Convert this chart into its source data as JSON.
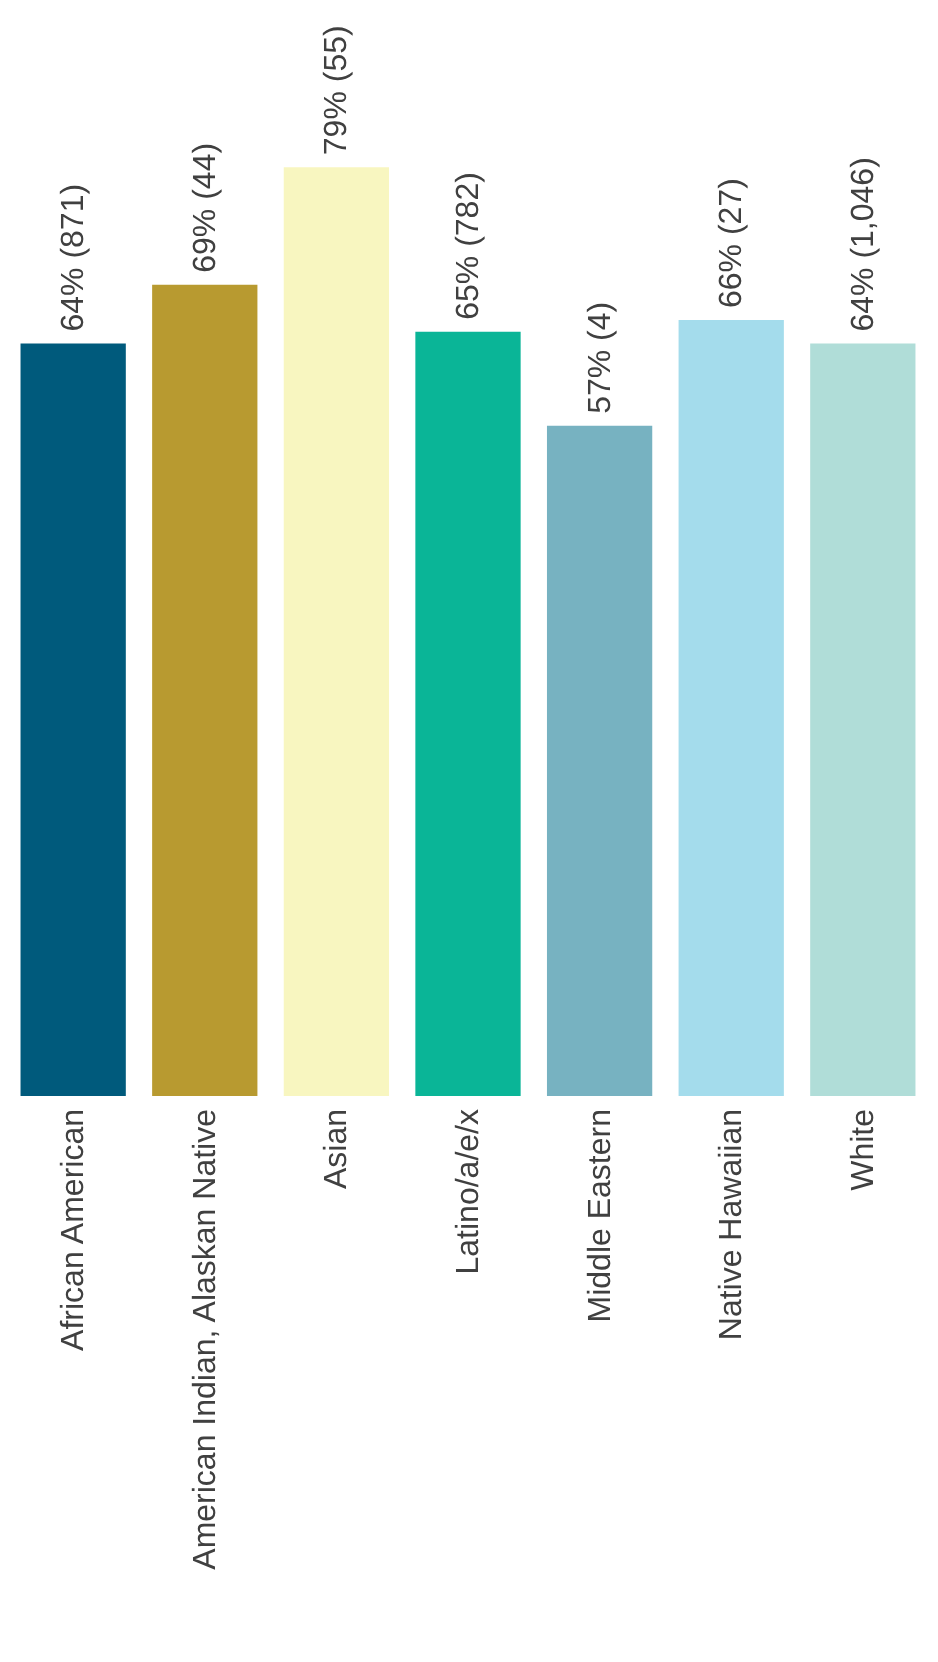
{
  "chart_data": {
    "type": "bar",
    "categories": [
      "African American",
      "American Indian, Alaskan Native",
      "Asian",
      "Latino/a/e/x",
      "Middle Eastern",
      "Native Hawaiian",
      "White"
    ],
    "values": [
      64,
      69,
      79,
      65,
      57,
      66,
      64
    ],
    "colors": [
      "#005a7c",
      "#b89a30",
      "#f8f6c0",
      "#0ab597",
      "#77b2c1",
      "#a4dcec",
      "#b0ddd8"
    ],
    "value_labels": [
      "64% (871)",
      "69% (44)",
      "79% (55)",
      "65% (782)",
      "57% (4)",
      "66% (27)",
      "64% (1,046)"
    ],
    "grid": false,
    "legend": false
  }
}
